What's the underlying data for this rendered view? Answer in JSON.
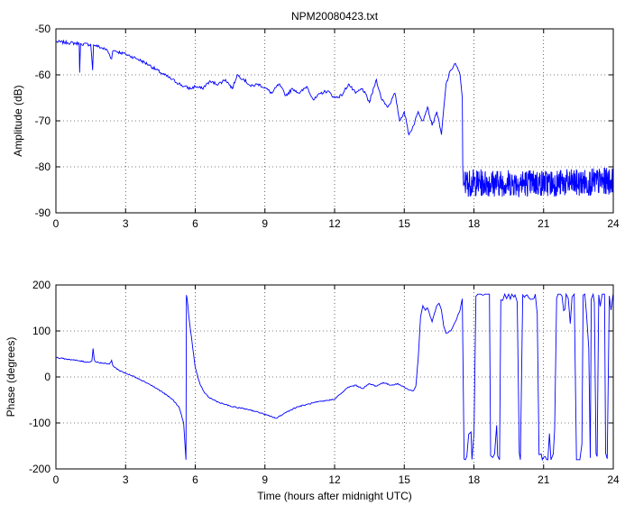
{
  "chart_data": [
    {
      "type": "line",
      "title": "NPM20080423.txt",
      "xlabel": "",
      "ylabel": "Amplitude (dB)",
      "xlim": [
        0,
        24
      ],
      "ylim": [
        -90,
        -50
      ],
      "xticks": [
        0,
        3,
        6,
        9,
        12,
        15,
        18,
        21,
        24
      ],
      "yticks": [
        -90,
        -80,
        -70,
        -60,
        -50
      ],
      "grid": true,
      "color": "#0000ff",
      "series": [
        {
          "x": [
            0,
            0.5,
            1.0,
            1.02,
            1.06,
            1.1,
            1.5,
            1.58,
            1.62,
            1.7,
            2.2,
            2.4,
            2.45,
            2.5,
            2.55,
            2.8,
            3.0,
            3.5,
            4.0,
            4.5,
            5.0,
            5.5,
            5.8,
            6.0,
            6.3,
            6.6,
            7.0,
            7.3,
            7.6,
            7.8,
            8.1,
            8.4,
            8.7,
            9.0,
            9.3,
            9.6,
            9.9,
            10.2,
            10.5,
            10.8,
            11.1,
            11.4,
            11.7,
            12.0,
            12.3,
            12.6,
            12.9,
            13.2,
            13.5,
            13.8,
            14.0,
            14.3,
            14.6,
            14.8,
            15.0,
            15.2,
            15.4,
            15.6,
            15.8,
            16.0,
            16.2,
            16.4,
            16.6,
            16.8,
            17.0,
            17.2,
            17.4,
            17.5,
            17.52,
            17.55,
            17.6
          ],
          "values": [
            -52.8,
            -53.0,
            -53.2,
            -59.5,
            -53.2,
            -53.3,
            -53.4,
            -59.0,
            -53.5,
            -53.6,
            -54.6,
            -56.5,
            -54.8,
            -54.7,
            -54.8,
            -55.2,
            -55.5,
            -56.5,
            -57.8,
            -59.5,
            -61.0,
            -62.5,
            -63.0,
            -62.5,
            -63.0,
            -61.5,
            -62.0,
            -61.0,
            -63.0,
            -60.0,
            -61.0,
            -62.5,
            -62.0,
            -62.8,
            -64.0,
            -62.0,
            -64.5,
            -63.0,
            -64.0,
            -62.5,
            -65.5,
            -64.0,
            -63.5,
            -65.0,
            -64.5,
            -62.0,
            -64.0,
            -63.0,
            -66.0,
            -61.0,
            -65.0,
            -67.0,
            -64.0,
            -70.0,
            -68.0,
            -73.0,
            -71.0,
            -68.0,
            -70.0,
            -67.0,
            -71.0,
            -68.0,
            -73.0,
            -62.0,
            -59.0,
            -57.5,
            -60.0,
            -65.0,
            -80.0,
            -84.0,
            -83.0
          ]
        }
      ],
      "noise_band": {
        "x_start": 17.6,
        "x_end": 24,
        "center": -83.5,
        "spread": 3.0,
        "rising_end": -83.0
      }
    },
    {
      "type": "line",
      "title": "",
      "xlabel": "Time (hours after midnight UTC)",
      "ylabel": "Phase (degrees)",
      "xlim": [
        0,
        24
      ],
      "ylim": [
        -200,
        200
      ],
      "xticks": [
        0,
        3,
        6,
        9,
        12,
        15,
        18,
        21,
        24
      ],
      "yticks": [
        -200,
        -100,
        0,
        100,
        200
      ],
      "grid": true,
      "color": "#0000ff",
      "series": [
        {
          "x": [
            0,
            0.3,
            0.6,
            1.0,
            1.4,
            1.55,
            1.6,
            1.65,
            1.7,
            2.0,
            2.3,
            2.4,
            2.45,
            2.5,
            2.7,
            3.0,
            3.5,
            4.0,
            4.5,
            5.0,
            5.3,
            5.5,
            5.6,
            5.62,
            5.65,
            5.75,
            5.9,
            6.0,
            6.2,
            6.4,
            6.6,
            7.0,
            7.3,
            7.6,
            8.0,
            8.4,
            8.8,
            9.2,
            9.5,
            9.8,
            10.1,
            10.4,
            10.8,
            11.2,
            11.6,
            12.0,
            12.3,
            12.6,
            12.9,
            13.2,
            13.5,
            13.8,
            14.1,
            14.4,
            14.7,
            15.0,
            15.2,
            15.4,
            15.5,
            15.6,
            15.7,
            15.8,
            15.9,
            16.0,
            16.2,
            16.4,
            16.5,
            16.6,
            16.7,
            16.8,
            17.0,
            17.2,
            17.4,
            17.5
          ],
          "values": [
            42,
            40,
            38,
            35,
            32,
            35,
            62,
            38,
            33,
            30,
            28,
            36,
            25,
            22,
            15,
            8,
            -2,
            -15,
            -30,
            -48,
            -65,
            -100,
            -180,
            178,
            170,
            120,
            60,
            20,
            -15,
            -35,
            -45,
            -55,
            -60,
            -65,
            -68,
            -72,
            -78,
            -85,
            -90,
            -80,
            -72,
            -65,
            -60,
            -55,
            -52,
            -48,
            -35,
            -22,
            -18,
            -25,
            -15,
            -20,
            -12,
            -18,
            -15,
            -22,
            -28,
            -30,
            -20,
            40,
            130,
            155,
            145,
            150,
            120,
            155,
            160,
            145,
            110,
            95,
            100,
            120,
            145,
            170
          ]
        }
      ],
      "wrap_region": {
        "x_start": 17.5,
        "x_end": 24,
        "min": -180,
        "max": 180
      }
    }
  ]
}
